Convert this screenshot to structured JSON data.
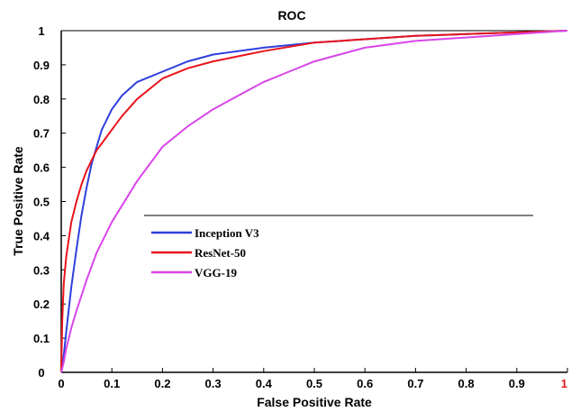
{
  "chart_data": {
    "type": "line",
    "title": "ROC",
    "xlabel": "False Positive Rate",
    "ylabel": "True Positive Rate",
    "xlim": [
      0,
      1
    ],
    "ylim": [
      0,
      1
    ],
    "x_ticks": [
      "0",
      "0.1",
      "0.2",
      "0.3",
      "0.4",
      "0.5",
      "0.6",
      "0.7",
      "0.8",
      "0.9",
      "1"
    ],
    "y_ticks": [
      "0",
      "0.1",
      "0.2",
      "0.3",
      "0.4",
      "0.5",
      "0.6",
      "0.7",
      "0.8",
      "0.9",
      "1"
    ],
    "grid": false,
    "legend_position": "center",
    "series": [
      {
        "name": "Inception V3",
        "color": "#2e3fdc",
        "x": [
          0,
          0.005,
          0.01,
          0.02,
          0.03,
          0.04,
          0.05,
          0.06,
          0.07,
          0.08,
          0.1,
          0.12,
          0.15,
          0.2,
          0.25,
          0.3,
          0.4,
          0.5,
          0.6,
          0.7,
          0.8,
          0.9,
          1
        ],
        "y": [
          0,
          0.05,
          0.12,
          0.25,
          0.36,
          0.46,
          0.54,
          0.61,
          0.66,
          0.71,
          0.77,
          0.81,
          0.85,
          0.88,
          0.91,
          0.93,
          0.95,
          0.965,
          0.975,
          0.985,
          0.99,
          0.995,
          1
        ]
      },
      {
        "name": "ResNet-50",
        "color": "#e8141c",
        "x": [
          0,
          0.002,
          0.005,
          0.01,
          0.02,
          0.03,
          0.04,
          0.05,
          0.06,
          0.07,
          0.08,
          0.1,
          0.12,
          0.15,
          0.2,
          0.25,
          0.3,
          0.4,
          0.5,
          0.6,
          0.7,
          0.8,
          0.9,
          1
        ],
        "y": [
          0,
          0.15,
          0.26,
          0.34,
          0.44,
          0.5,
          0.55,
          0.59,
          0.62,
          0.65,
          0.67,
          0.71,
          0.75,
          0.8,
          0.86,
          0.89,
          0.91,
          0.94,
          0.965,
          0.975,
          0.985,
          0.99,
          0.995,
          1
        ]
      },
      {
        "name": "VGG-19",
        "color": "#d846e8",
        "x": [
          0,
          0.005,
          0.01,
          0.02,
          0.03,
          0.05,
          0.07,
          0.1,
          0.15,
          0.2,
          0.25,
          0.3,
          0.35,
          0.4,
          0.45,
          0.5,
          0.55,
          0.6,
          0.7,
          0.8,
          0.9,
          1
        ],
        "y": [
          0,
          0.03,
          0.07,
          0.13,
          0.18,
          0.27,
          0.35,
          0.44,
          0.56,
          0.66,
          0.72,
          0.77,
          0.81,
          0.85,
          0.88,
          0.91,
          0.93,
          0.95,
          0.97,
          0.98,
          0.99,
          1
        ]
      }
    ]
  }
}
